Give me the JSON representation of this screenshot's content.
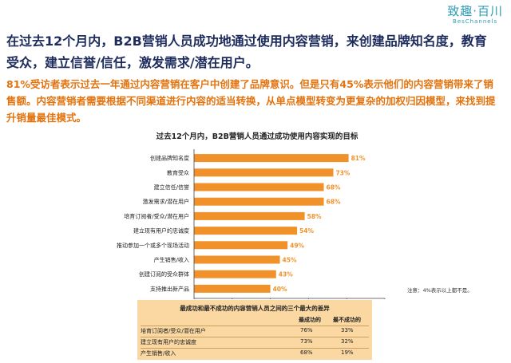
{
  "brand": {
    "name": "致趣·百川",
    "sub": "BesChannels"
  },
  "headline": "在过去12个月内，B2B营销人员成功地通过使用内容营销，来创建品牌知名度，教育受众，建立信誉/信任，激发需求/潜在用户。",
  "summary": "81%受访者表示过去一年通过内容营销在客户中创建了品牌意识。但是只有45%表示他们的内容营销带来了销售额。内容营销者需要根据不同渠道进行内容的适当转换，从单点模型转变为更复杂的加权归因模型，来找到提升销量最佳模式。",
  "footnote": "注意：4%表示以上都不是。",
  "colors": {
    "bar": "#f0912a",
    "headline": "#1d2c5c",
    "summary": "#e2730f",
    "compare_bg": "#fbd7a2"
  },
  "chart_data": {
    "type": "bar",
    "orientation": "horizontal",
    "title": "过去12个月内，B2B营销人员通过成功使用内容实现的目标",
    "categories": [
      "创建品牌知名度",
      "教育受众",
      "建立信任/信誉",
      "激发需求/潜在用户",
      "培育订阅者/受众/潜在用户",
      "建立现有用户的忠诚度",
      "推动参加一个或多个现场活动",
      "产生销售/收入",
      "创建订阅的受众群体",
      "支持推出新产品"
    ],
    "values": [
      81,
      73,
      68,
      68,
      58,
      54,
      49,
      45,
      43,
      40
    ],
    "value_labels": [
      "81%",
      "73%",
      "68%",
      "68%",
      "58%",
      "54%",
      "49%",
      "45%",
      "43%",
      "40%"
    ],
    "xlim": [
      0,
      100
    ],
    "xticks": [
      0,
      20,
      40,
      60,
      80,
      100
    ],
    "grid": false
  },
  "comparison": {
    "title": "最成功和最不成功的内容营销人员之间的三个最大的差异",
    "col1": "最成功的",
    "col2": "最不成功的",
    "rows": [
      {
        "label": "培育订阅者/受众/潜在用户",
        "most": "76%",
        "least": "33%"
      },
      {
        "label": "建立现有用户的忠诚度",
        "most": "73%",
        "least": "32%"
      },
      {
        "label": "产生销售/收入",
        "most": "68%",
        "least": "19%"
      }
    ]
  }
}
